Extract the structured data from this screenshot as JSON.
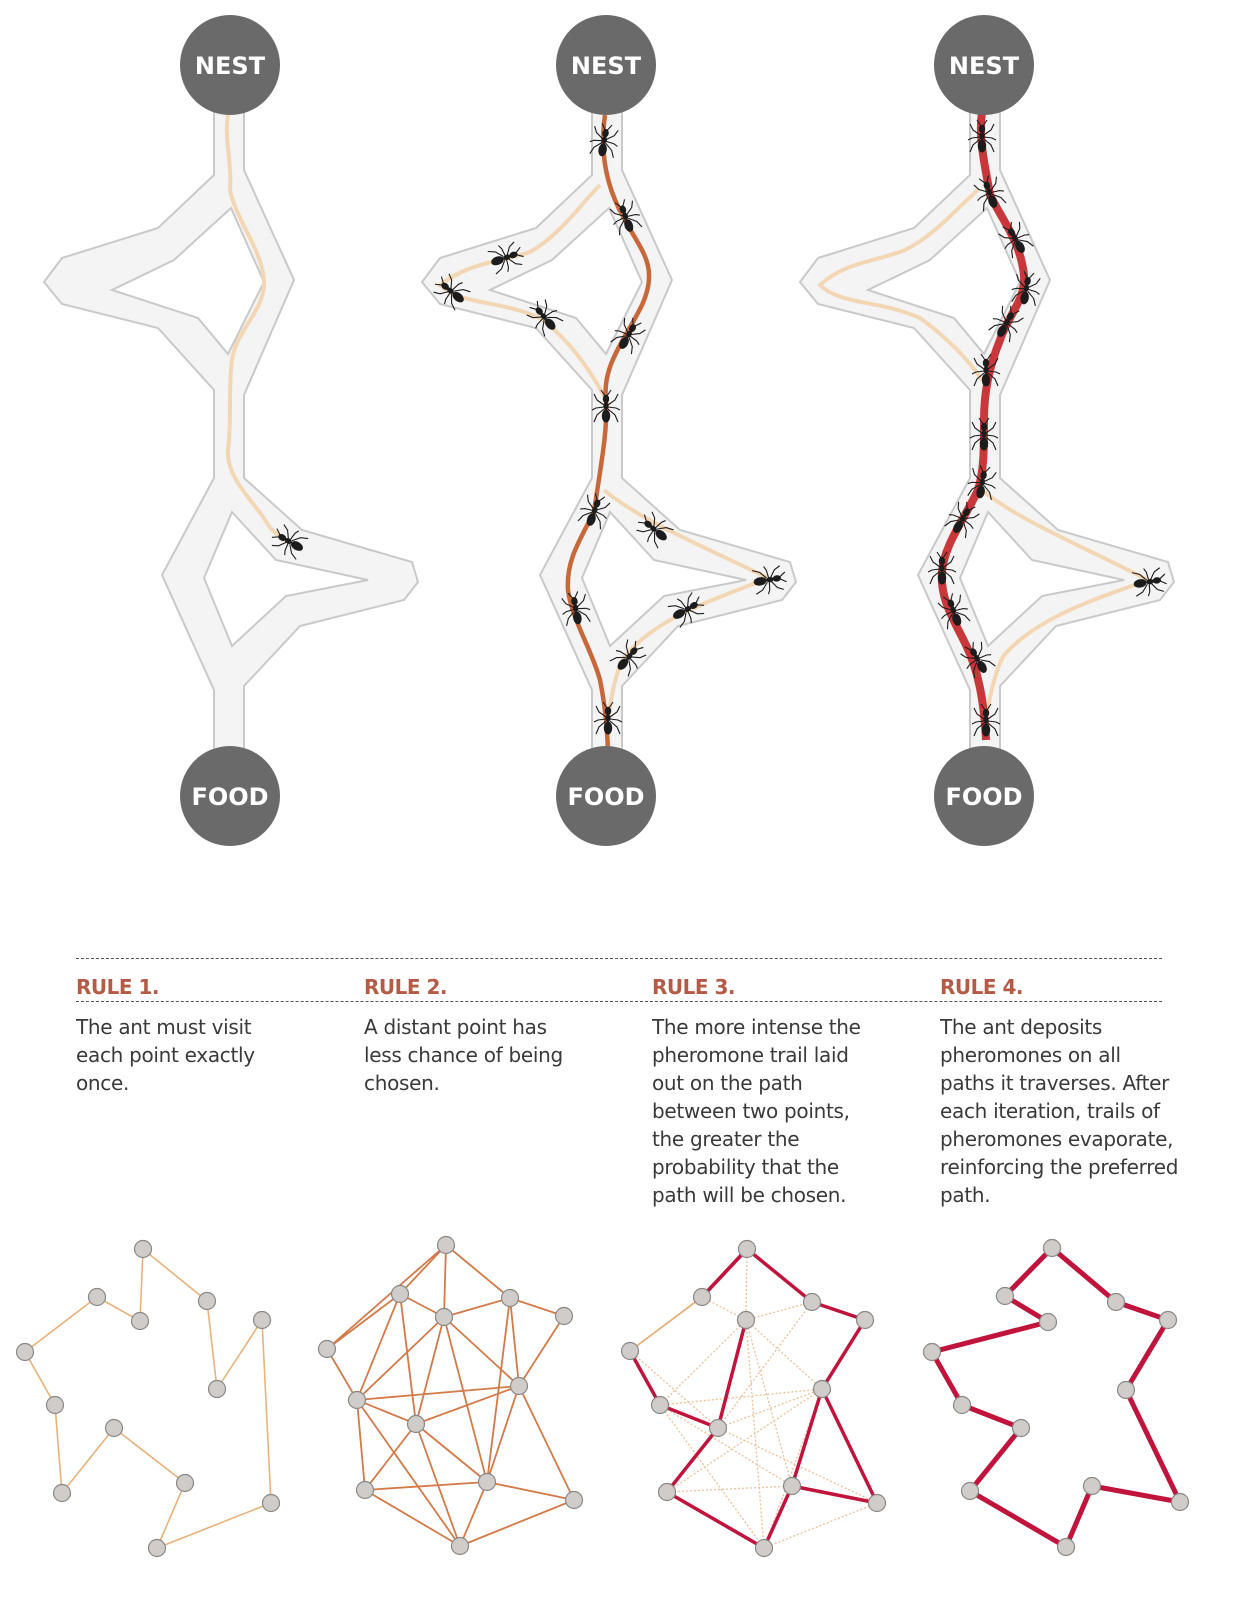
{
  "labels": {
    "nest": "NEST",
    "food": "FOOD"
  },
  "rules": [
    {
      "title": "RULE 1.",
      "text": "The ant must visit each point exactly once."
    },
    {
      "title": "RULE 2.",
      "text": "A distant point has less chance of being chosen."
    },
    {
      "title": "RULE 3.",
      "text": "The more intense the pheromone trail laid out on the path between two points, the greater the probability that the path will be chosen."
    },
    {
      "title": "RULE 4.",
      "text": "The ant deposits pheromones on all paths it traverses. After each iteration, trails of pheromones evaporate, reinforcing the preferred path."
    }
  ],
  "colors": {
    "node_circle": "#6b6a6b",
    "corridor_fill": "#f3f4f3",
    "corridor_stroke": "#c9c9c9",
    "faint_trail": "#f3d7b4",
    "medium_trail": "#c8683a",
    "strong_trail": "#c8383a",
    "rule_title": "#b45a45",
    "graph_node": "#cfccc9",
    "graph_node_stroke": "#8a8886",
    "graph_faint": "#e9b27a",
    "graph_medium": "#d27a48",
    "graph_strong": "#c0143c"
  }
}
